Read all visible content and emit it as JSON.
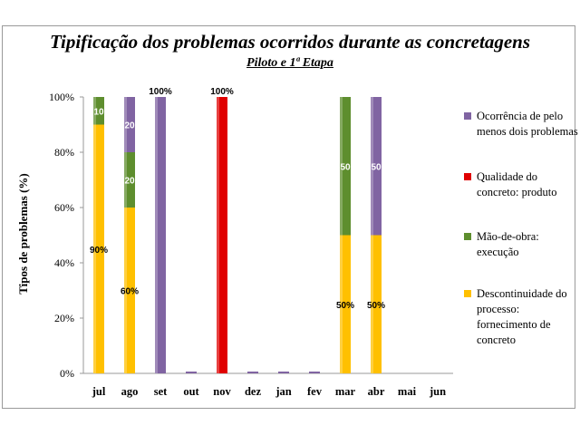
{
  "title": "Tipificação dos problemas ocorridos durante as concretagens",
  "subtitle": "Piloto e 1ª Etapa",
  "chart_data": {
    "type": "bar",
    "stacked": true,
    "ylabel": "Tipos de problemas (%)",
    "ylim": [
      0,
      100
    ],
    "yticks": [
      "0%",
      "20%",
      "40%",
      "60%",
      "80%",
      "100%"
    ],
    "grid": false,
    "legend_position": "right",
    "categories": [
      "jul",
      "ago",
      "set",
      "out",
      "nov",
      "dez",
      "jan",
      "fev",
      "mar",
      "abr",
      "mai",
      "jun"
    ],
    "series": [
      {
        "name": "Descontinuidade do processo: fornecimento de concreto",
        "color": "#FFC000",
        "values": [
          90,
          60,
          0,
          0,
          0,
          0,
          0,
          0,
          50,
          50,
          0,
          0
        ],
        "labels": [
          "90%",
          "60%",
          "",
          "",
          "",
          "",
          "",
          "",
          "50%",
          "50%",
          "",
          ""
        ]
      },
      {
        "name": "Mão-de-obra: execução",
        "color": "#5E8E2E",
        "values": [
          10,
          20,
          0,
          0,
          0,
          0,
          0,
          0,
          50,
          0,
          0,
          0
        ],
        "labels": [
          "10",
          "20",
          "",
          "",
          "",
          "",
          "",
          "",
          "50",
          "",
          "",
          ""
        ]
      },
      {
        "name": "Qualidade do concreto: produto",
        "color": "#E00000",
        "values": [
          0,
          0,
          0,
          0,
          100,
          0,
          0,
          0,
          0,
          0,
          0,
          0
        ],
        "labels": [
          "",
          "",
          "",
          "",
          "100%",
          "",
          "",
          "",
          "",
          "",
          "",
          ""
        ]
      },
      {
        "name": "Ocorrência de pelo menos dois problemas",
        "color": "#8064A2",
        "values": [
          0,
          20,
          100,
          0,
          0,
          0,
          0,
          0,
          0,
          50,
          0,
          0
        ],
        "labels": [
          "",
          "20",
          "100%",
          "",
          "",
          "",
          "",
          "",
          "",
          "50",
          "",
          ""
        ]
      }
    ],
    "legend_order": [
      3,
      2,
      1,
      0
    ],
    "empty_marker_categories": [
      "out",
      "dez",
      "jan",
      "fev"
    ]
  }
}
